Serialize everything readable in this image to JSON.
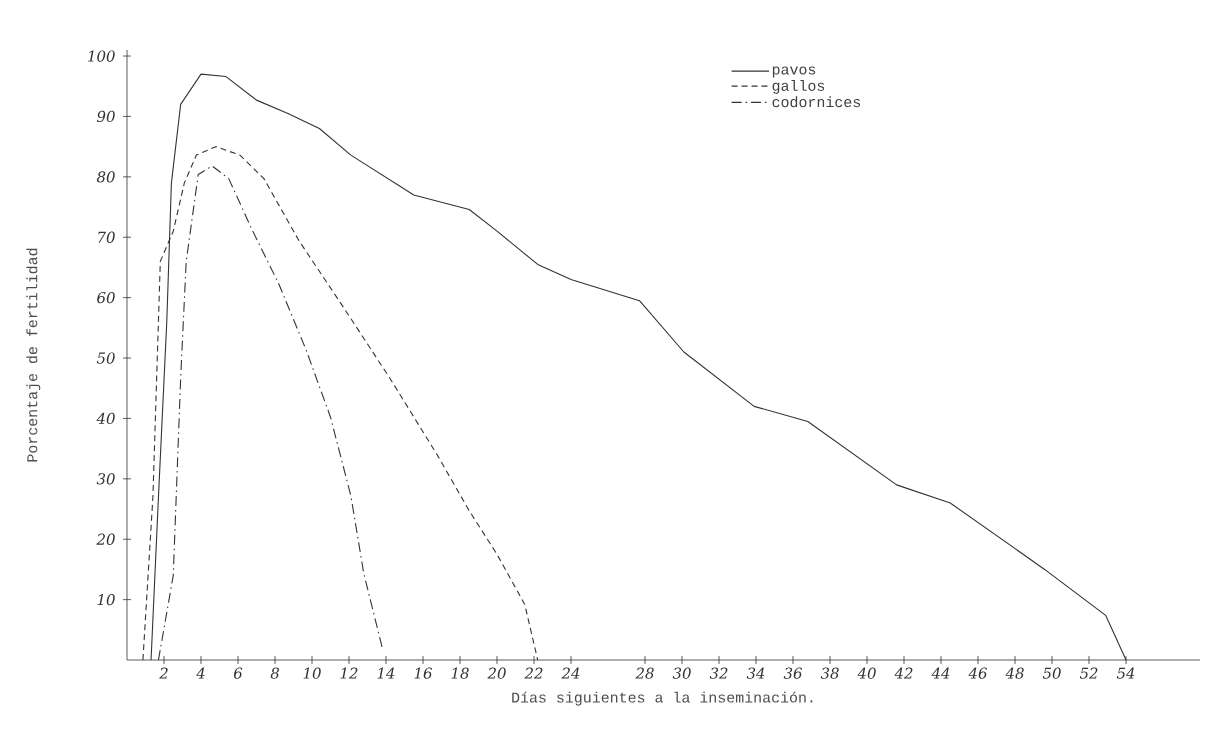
{
  "chart_data": {
    "type": "line",
    "xlabel": "Días siguientes a la inseminación.",
    "ylabel": "Porcentaje de fertilidad",
    "xlim": [
      0,
      58
    ],
    "ylim": [
      0,
      101
    ],
    "xticks": [
      2,
      4,
      6,
      8,
      10,
      12,
      14,
      16,
      18,
      20,
      22,
      24,
      28,
      30,
      32,
      34,
      36,
      38,
      40,
      42,
      44,
      46,
      48,
      50,
      52,
      54
    ],
    "yticks": [
      10,
      20,
      30,
      40,
      50,
      60,
      70,
      80,
      90,
      100
    ],
    "legend": "top right",
    "grid": false,
    "series": [
      {
        "name": "pavos",
        "color": "#333333",
        "line_style": "solid",
        "x": [
          1.3,
          1.7,
          2.15,
          2.4,
          2.9,
          4,
          5.35,
          7,
          8.7,
          10.4,
          12.1,
          15.5,
          18.5,
          20,
          22.2,
          24,
          27.7,
          30.1,
          33.9,
          36.8,
          41.6,
          44.5,
          49.6,
          52.9,
          54
        ],
        "values": [
          0,
          27,
          56,
          79,
          92,
          97,
          96.6,
          92.7,
          90.5,
          88,
          83.6,
          77,
          74.6,
          71,
          65.5,
          63,
          59.5,
          51,
          42,
          39.5,
          29,
          26,
          15,
          7.4,
          0
        ]
      },
      {
        "name": "gallos",
        "color": "#333333",
        "line_style": "dashed",
        "x": [
          0.86,
          1.4,
          1.8,
          2.5,
          3.1,
          3.75,
          4.8,
          6.1,
          7.4,
          9.3,
          11.7,
          14.2,
          16.8,
          18.5,
          20,
          21.5,
          22.2
        ],
        "values": [
          0,
          27,
          66,
          71,
          79,
          83.6,
          85,
          83.6,
          79.7,
          69.4,
          58.4,
          46.7,
          33.8,
          24.7,
          17.5,
          9.2,
          0
        ]
      },
      {
        "name": "codornices",
        "color": "#333333",
        "line_style": "dashdot",
        "x": [
          1.7,
          2.5,
          2.9,
          3.2,
          3.85,
          4.6,
          5.5,
          6.75,
          8.2,
          9.7,
          11,
          12.1,
          12.8,
          13.8
        ],
        "values": [
          0,
          14,
          46.7,
          66,
          80.4,
          81.8,
          79.7,
          71.3,
          62.3,
          51.2,
          40.2,
          27.2,
          14.3,
          2
        ]
      }
    ]
  }
}
